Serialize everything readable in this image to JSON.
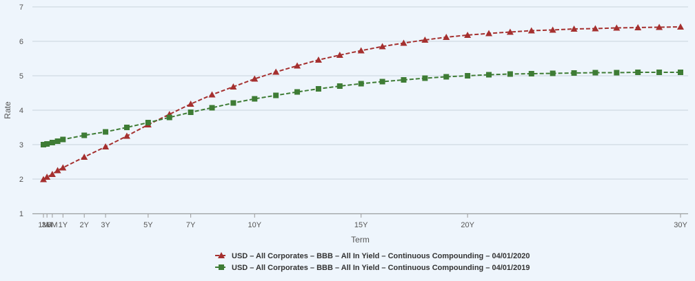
{
  "chart_data": {
    "type": "line",
    "title": "",
    "xlabel": "Term",
    "ylabel": "Rate",
    "ylim": [
      1,
      7
    ],
    "y_ticks": [
      1,
      2,
      3,
      4,
      5,
      6,
      7
    ],
    "x_ticks": [
      {
        "label": "1M",
        "x": 0.0833
      },
      {
        "label": "3M",
        "x": 0.25
      },
      {
        "label": "6M",
        "x": 0.5
      },
      {
        "label": "1Y",
        "x": 1
      },
      {
        "label": "2Y",
        "x": 2
      },
      {
        "label": "3Y",
        "x": 3
      },
      {
        "label": "5Y",
        "x": 5
      },
      {
        "label": "7Y",
        "x": 7
      },
      {
        "label": "10Y",
        "x": 10
      },
      {
        "label": "15Y",
        "x": 15
      },
      {
        "label": "20Y",
        "x": 20
      },
      {
        "label": "30Y",
        "x": 30
      }
    ],
    "grid": "horizontal",
    "legend_position": "bottom-center",
    "series": [
      {
        "name": "USD – All Corporates – BBB – All In Yield – Continuous Compounding – 04/01/2020",
        "color": "#a5302f",
        "marker": "triangle",
        "x": [
          0.0833,
          0.25,
          0.5,
          0.75,
          1,
          2,
          3,
          4,
          5,
          6,
          7,
          8,
          9,
          10,
          11,
          12,
          13,
          14,
          15,
          16,
          17,
          18,
          19,
          20,
          21,
          22,
          23,
          24,
          25,
          26,
          27,
          28,
          29,
          30
        ],
        "y": [
          1.99,
          2.06,
          2.14,
          2.25,
          2.33,
          2.64,
          2.94,
          3.25,
          3.58,
          3.88,
          4.18,
          4.45,
          4.68,
          4.91,
          5.11,
          5.29,
          5.46,
          5.6,
          5.73,
          5.85,
          5.95,
          6.04,
          6.12,
          6.18,
          6.23,
          6.27,
          6.31,
          6.33,
          6.36,
          6.37,
          6.39,
          6.4,
          6.41,
          6.42
        ]
      },
      {
        "name": "USD – All Corporates – BBB – All In Yield – Continuous Compounding – 04/01/2019",
        "color": "#3e7c35",
        "marker": "square",
        "x": [
          0.0833,
          0.25,
          0.5,
          0.75,
          1,
          2,
          3,
          4,
          5,
          6,
          7,
          8,
          9,
          10,
          11,
          12,
          13,
          14,
          15,
          16,
          17,
          18,
          19,
          20,
          21,
          22,
          23,
          24,
          25,
          26,
          27,
          28,
          29,
          30
        ],
        "y": [
          3.0,
          3.02,
          3.06,
          3.1,
          3.15,
          3.27,
          3.37,
          3.5,
          3.64,
          3.79,
          3.94,
          4.07,
          4.21,
          4.33,
          4.43,
          4.53,
          4.62,
          4.7,
          4.77,
          4.83,
          4.88,
          4.93,
          4.97,
          5.0,
          5.03,
          5.05,
          5.06,
          5.07,
          5.08,
          5.09,
          5.09,
          5.1,
          5.1,
          5.1
        ]
      }
    ]
  }
}
